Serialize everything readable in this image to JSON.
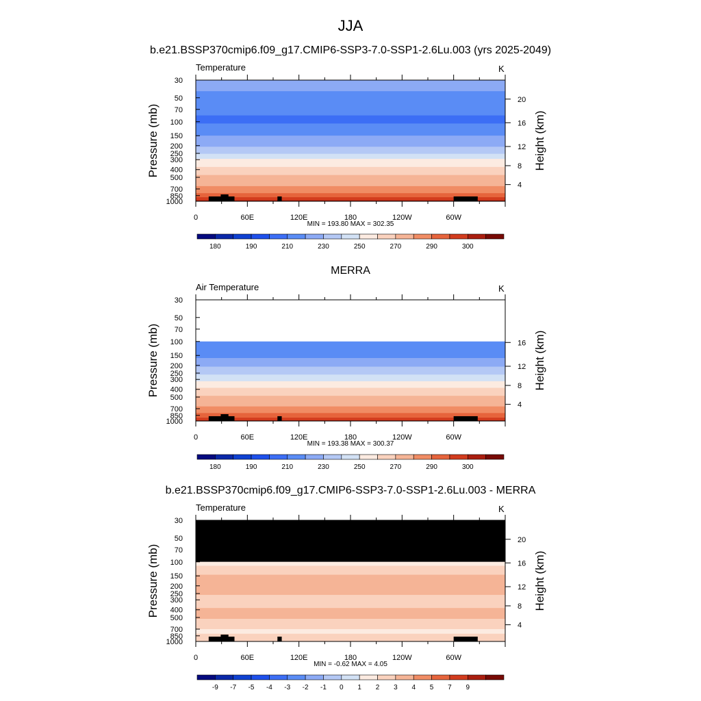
{
  "figure": {
    "title": "JJA"
  },
  "colors": {
    "temperature_scale": [
      "#050a7f",
      "#0a28a8",
      "#0f41d1",
      "#1e50eb",
      "#3c6ef5",
      "#5a8cf5",
      "#8caaf5",
      "#b4c8f5",
      "#d2e1f5",
      "#fcebe1",
      "#fad2be",
      "#f5b496",
      "#f08c64",
      "#e6643c",
      "#d23c1e",
      "#aa1e0f",
      "#780a05"
    ],
    "mask": "#000000"
  },
  "chart_data": [
    {
      "type": "heatmap",
      "panel_title": "b.e21.BSSP370cmip6.f09_g17.CMIP6-SSP3-7.0-SSP1-2.6Lu.003 (yrs 2025-2049)",
      "left_label": "Temperature",
      "units": "K",
      "ylabel": "Pressure (mb)",
      "ylabel_right": "Height (km)",
      "x_ticks": [
        "0",
        "60E",
        "120E",
        "180",
        "120W",
        "60W"
      ],
      "y_ticks": [
        "30",
        "50",
        "70",
        "100",
        "150",
        "200",
        "250",
        "300",
        "400",
        "500",
        "700",
        "850",
        "1000"
      ],
      "height_ticks": [
        "4",
        "8",
        "12",
        "16",
        "20"
      ],
      "stats": "MIN = 193.80  MAX = 302.35",
      "colorbar_labels": [
        "180",
        "190",
        "210",
        "230",
        "250",
        "270",
        "290",
        "300"
      ],
      "levels": [
        175,
        180,
        185,
        190,
        200,
        210,
        220,
        230,
        240,
        250,
        260,
        270,
        280,
        290,
        295,
        300
      ],
      "xlim": [
        0,
        360
      ],
      "ylim": [
        30,
        1000
      ],
      "profile": [
        [
          30,
          215
        ],
        [
          50,
          207
        ],
        [
          70,
          201
        ],
        [
          100,
          199
        ],
        [
          125,
          203
        ],
        [
          150,
          210
        ],
        [
          175,
          215
        ],
        [
          200,
          219
        ],
        [
          225,
          223
        ],
        [
          250,
          228
        ],
        [
          275,
          235
        ],
        [
          300,
          241
        ],
        [
          350,
          247
        ],
        [
          400,
          253
        ],
        [
          450,
          258
        ],
        [
          500,
          263
        ],
        [
          600,
          268
        ],
        [
          700,
          273
        ],
        [
          775,
          279
        ],
        [
          850,
          286
        ],
        [
          925,
          292
        ],
        [
          1000,
          298
        ]
      ]
    },
    {
      "type": "heatmap",
      "panel_title": "MERRA",
      "left_label": "Air Temperature",
      "units": "K",
      "ylabel": "Pressure (mb)",
      "ylabel_right": "Height (km)",
      "x_ticks": [
        "0",
        "60E",
        "120E",
        "180",
        "120W",
        "60W"
      ],
      "y_ticks": [
        "30",
        "50",
        "70",
        "100",
        "150",
        "200",
        "250",
        "300",
        "400",
        "500",
        "700",
        "850",
        "1000"
      ],
      "height_ticks": [
        "4",
        "8",
        "12",
        "16"
      ],
      "stats": "MIN = 193.38  MAX = 300.37",
      "colorbar_labels": [
        "180",
        "190",
        "210",
        "230",
        "250",
        "270",
        "290",
        "300"
      ],
      "levels": [
        175,
        180,
        185,
        190,
        200,
        210,
        220,
        230,
        240,
        250,
        260,
        270,
        280,
        290,
        295,
        300
      ],
      "xlim": [
        0,
        360
      ],
      "ylim": [
        30,
        1000
      ],
      "data_top": 100,
      "profile": [
        [
          100,
          202
        ],
        [
          125,
          204
        ],
        [
          150,
          207
        ],
        [
          175,
          213
        ],
        [
          200,
          219
        ],
        [
          225,
          223
        ],
        [
          250,
          228
        ],
        [
          275,
          233
        ],
        [
          300,
          238
        ],
        [
          350,
          245
        ],
        [
          400,
          252
        ],
        [
          450,
          257
        ],
        [
          500,
          262
        ],
        [
          600,
          267
        ],
        [
          700,
          272
        ],
        [
          775,
          278
        ],
        [
          850,
          285
        ],
        [
          925,
          291
        ],
        [
          1000,
          297
        ]
      ]
    },
    {
      "type": "heatmap",
      "panel_title": "b.e21.BSSP370cmip6.f09_g17.CMIP6-SSP3-7.0-SSP1-2.6Lu.003 - MERRA",
      "left_label": "Temperature",
      "units": "K",
      "ylabel": "Pressure (mb)",
      "ylabel_right": "Height (km)",
      "x_ticks": [
        "0",
        "60E",
        "120E",
        "180",
        "120W",
        "60W"
      ],
      "y_ticks": [
        "30",
        "50",
        "70",
        "100",
        "150",
        "200",
        "250",
        "300",
        "400",
        "500",
        "700",
        "850",
        "1000"
      ],
      "height_ticks": [
        "4",
        "8",
        "12",
        "16",
        "20"
      ],
      "stats": "MIN =  -0.62  MAX =   4.05",
      "colorbar_labels": [
        "-9",
        "-7",
        "-5",
        "-4",
        "-3",
        "-2",
        "-1",
        "0",
        "1",
        "2",
        "3",
        "4",
        "5",
        "7",
        "9"
      ],
      "levels": [
        -9,
        -7,
        -5,
        -4,
        -3,
        -2,
        -1,
        0,
        1,
        2,
        3,
        4,
        5,
        7,
        9
      ],
      "xlim": [
        0,
        360
      ],
      "ylim": [
        30,
        1000
      ],
      "masked_above": 100,
      "bands": [
        {
          "p_top": 100,
          "p_bottom": 112,
          "value": 1.5
        },
        {
          "p_top": 112,
          "p_bottom": 145,
          "value": 2.5
        },
        {
          "p_top": 145,
          "p_bottom": 260,
          "value": 3.5
        },
        {
          "p_top": 260,
          "p_bottom": 380,
          "value": 2.5
        },
        {
          "p_top": 380,
          "p_bottom": 520,
          "value": 3.5
        },
        {
          "p_top": 520,
          "p_bottom": 700,
          "value": 2.5
        },
        {
          "p_top": 700,
          "p_bottom": 800,
          "value": 1.5
        },
        {
          "p_top": 800,
          "p_bottom": 1000,
          "value": 2.5
        }
      ]
    }
  ]
}
